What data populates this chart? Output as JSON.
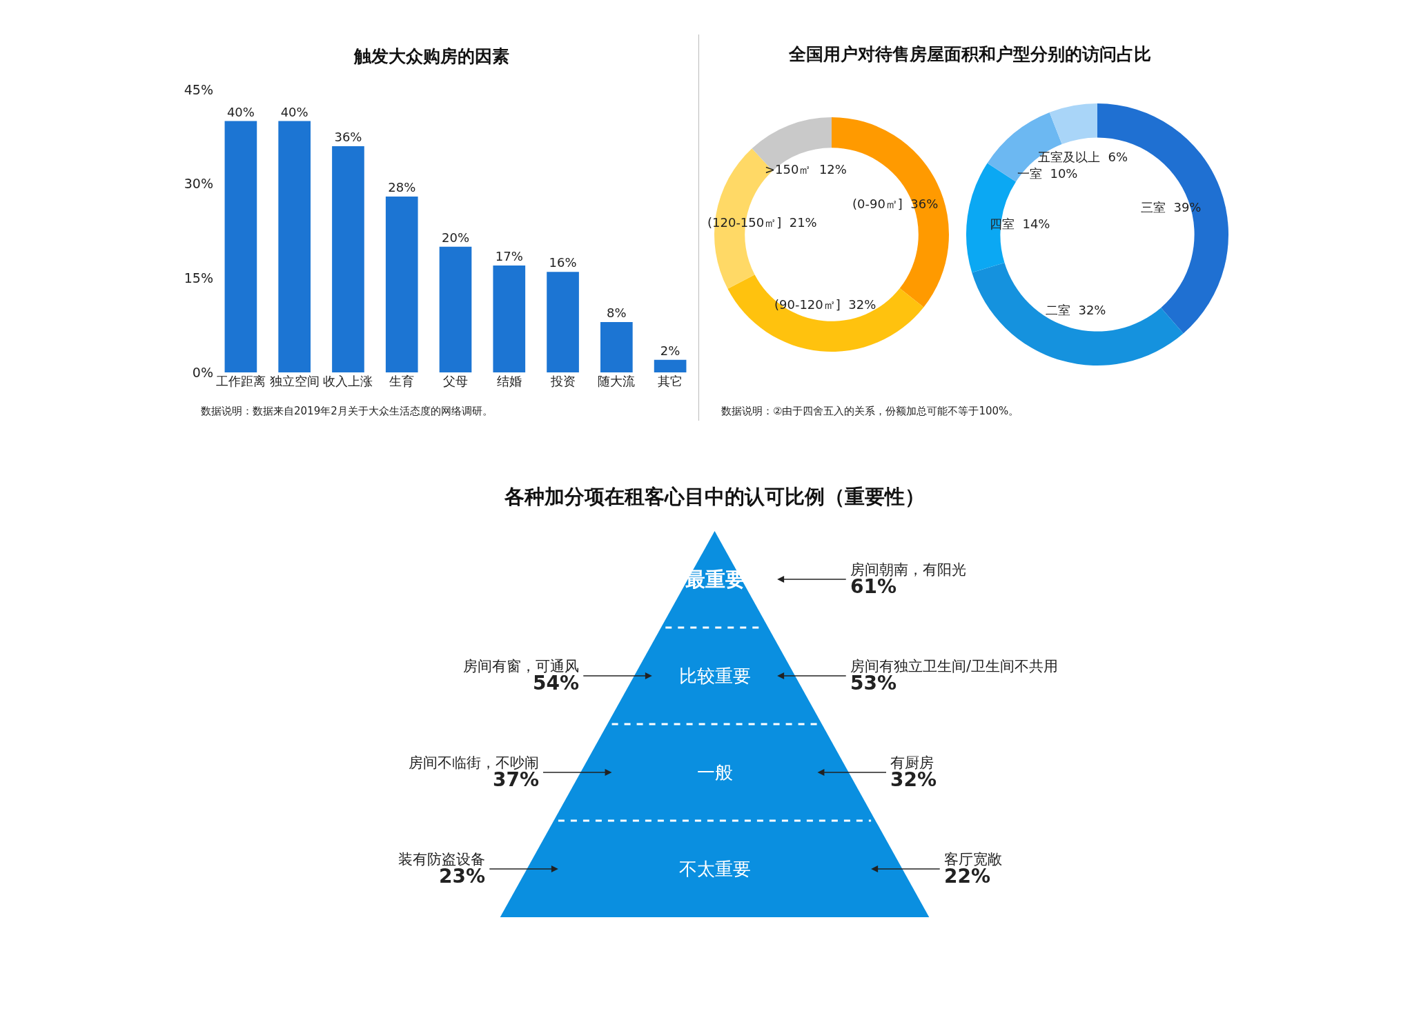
{
  "chart_data": [
    {
      "type": "bar",
      "title": "触发大众购房的因素",
      "categories": [
        "工作距离",
        "独立空间",
        "收入上涨",
        "生育",
        "父母",
        "结婚",
        "投资",
        "随大流",
        "其它"
      ],
      "values": [
        40,
        40,
        36,
        28,
        20,
        17,
        16,
        8,
        2
      ],
      "value_labels": [
        "40%",
        "40%",
        "36%",
        "28%",
        "20%",
        "17%",
        "16%",
        "8%",
        "2%"
      ],
      "color": "#1c75d3",
      "ylim": [
        0,
        45
      ],
      "yticks": [
        {
          "value": 0,
          "label": "0%"
        },
        {
          "value": 15,
          "label": "15%"
        },
        {
          "value": 30,
          "label": "30%"
        },
        {
          "value": 45,
          "label": "45%"
        }
      ],
      "grid": false,
      "legend": false,
      "annotations": [
        "数据说明：数据来自2019年2月关于大众生活态度的网络调研。"
      ]
    },
    {
      "type": "donut",
      "title": "全国用户对待售房屋面积和户型分别的访问占比",
      "categories": [
        "(0-90㎡]",
        "(90-120㎡]",
        "(120-150㎡]",
        ">150㎡"
      ],
      "values": [
        36,
        32,
        21,
        12
      ],
      "value_labels": [
        "36%",
        "32%",
        "21%",
        "12%"
      ],
      "colors": [
        "#ff9a00",
        "#ffc20e",
        "#ffd966",
        "#c9c9c9"
      ],
      "legend": false,
      "annotations": [
        "数据说明：②由于四舍五入的关系，份额加总可能不等于100%。"
      ]
    },
    {
      "type": "donut",
      "categories": [
        "三室",
        "二室",
        "四室",
        "一室",
        "五室及以上"
      ],
      "values": [
        39,
        32,
        14,
        10,
        6
      ],
      "value_labels": [
        "39%",
        "32%",
        "14%",
        "10%",
        "6%"
      ],
      "colors": [
        "#1f70d2",
        "#1592de",
        "#0ba8f3",
        "#6cb8f2",
        "#a9d5f8"
      ],
      "legend": false
    },
    {
      "type": "other",
      "title": "各种加分项在租客心目中的认可比例（重要性）",
      "categories": [
        "最重要",
        "比较重要",
        "一般",
        "不太重要"
      ],
      "series": [
        {
          "name": "房间朝南，有阳光",
          "values": [
            61,
            null,
            null,
            null
          ],
          "value_labels": [
            "61%",
            null,
            null,
            null
          ]
        },
        {
          "name": "房间有窗，可通风",
          "values": [
            null,
            54,
            null,
            null
          ],
          "value_labels": [
            null,
            "54%",
            null,
            null
          ]
        },
        {
          "name": "房间有独立卫生间/卫生间不共用",
          "values": [
            null,
            53,
            null,
            null
          ],
          "value_labels": [
            null,
            "53%",
            null,
            null
          ]
        },
        {
          "name": "房间不临街，不吵闹",
          "values": [
            null,
            null,
            37,
            null
          ],
          "value_labels": [
            null,
            null,
            "37%",
            null
          ]
        },
        {
          "name": "有厨房",
          "values": [
            null,
            null,
            32,
            null
          ],
          "value_labels": [
            null,
            null,
            "32%",
            null
          ]
        },
        {
          "name": "装有防盗设备",
          "values": [
            null,
            null,
            null,
            23
          ],
          "value_labels": [
            null,
            null,
            null,
            "23%"
          ]
        },
        {
          "name": "客厅宽敞",
          "values": [
            null,
            null,
            null,
            22
          ],
          "value_labels": [
            null,
            null,
            null,
            "22%"
          ]
        }
      ]
    }
  ]
}
